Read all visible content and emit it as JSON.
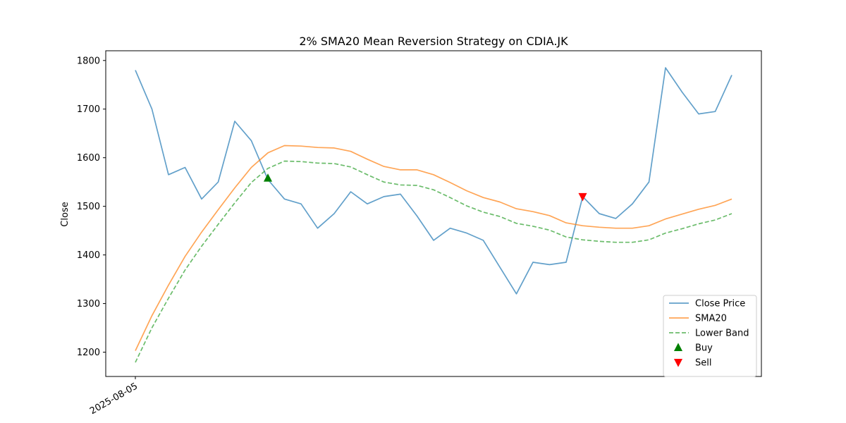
{
  "chart_data": {
    "type": "line",
    "title": "2% SMA20 Mean Reversion Strategy on CDIA.JK",
    "xlabel": "",
    "ylabel": "Close",
    "x_tick_labels": [
      "2025-08-05"
    ],
    "ylim": [
      1150,
      1820
    ],
    "yticks": [
      1200,
      1300,
      1400,
      1500,
      1600,
      1700,
      1800
    ],
    "grid": false,
    "legend_position": "lower-right",
    "series": [
      {
        "name": "Close Price",
        "color": "#1f77b4",
        "style": "solid",
        "values": [
          1780,
          1700,
          1565,
          1580,
          1515,
          1550,
          1675,
          1635,
          1555,
          1515,
          1505,
          1455,
          1485,
          1530,
          1505,
          1520,
          1525,
          1480,
          1430,
          1455,
          1445,
          1430,
          1375,
          1320,
          1385,
          1380,
          1385,
          1520,
          1485,
          1475,
          1505,
          1550,
          1785,
          1735,
          1690,
          1695,
          1770
        ]
      },
      {
        "name": "SMA20",
        "color": "#ff7f0e",
        "style": "solid",
        "values": [
          1203,
          1275,
          1338,
          1397,
          1447,
          1493,
          1538,
          1580,
          1610,
          1625,
          1624,
          1621,
          1620,
          1613,
          1597,
          1582,
          1575,
          1575,
          1565,
          1549,
          1532,
          1518,
          1509,
          1495,
          1489,
          1481,
          1466,
          1460,
          1457,
          1455,
          1455,
          1460,
          1474,
          1484,
          1494,
          1502,
          1515
        ]
      },
      {
        "name": "Lower Band",
        "color": "#2ca02c",
        "style": "dashed",
        "values": [
          1179,
          1250,
          1311,
          1369,
          1418,
          1463,
          1507,
          1549,
          1578,
          1593,
          1592,
          1589,
          1588,
          1581,
          1565,
          1550,
          1544,
          1543,
          1534,
          1518,
          1501,
          1488,
          1479,
          1465,
          1459,
          1451,
          1437,
          1431,
          1428,
          1426,
          1426,
          1431,
          1445,
          1454,
          1464,
          1472,
          1485
        ]
      }
    ],
    "markers": [
      {
        "name": "Buy",
        "color": "#008000",
        "shape": "triangle-up",
        "points": [
          {
            "index": 8,
            "y": 1558
          }
        ]
      },
      {
        "name": "Sell",
        "color": "#ff0000",
        "shape": "triangle-down",
        "points": [
          {
            "index": 27,
            "y": 1520
          }
        ]
      }
    ]
  }
}
